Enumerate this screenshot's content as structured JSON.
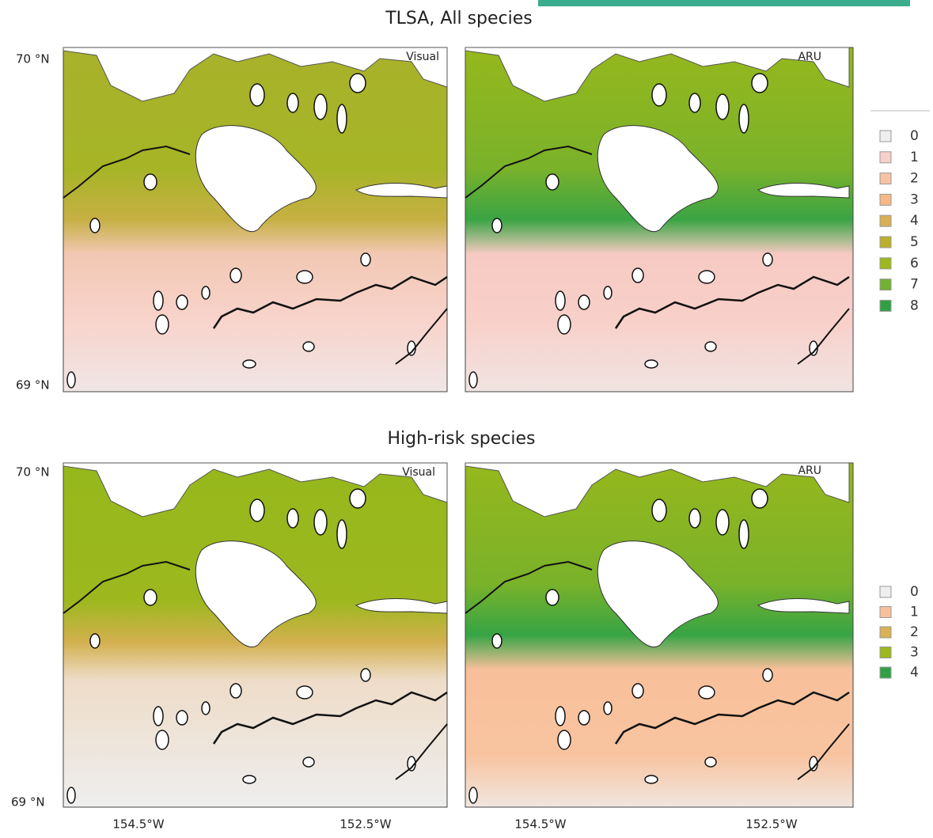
{
  "figure": {
    "titles": [
      "TLSA, All species",
      "High-risk species"
    ],
    "panel_labels": [
      "Visual",
      "ARU"
    ],
    "lat_labels": [
      "70 °N",
      "69 °N"
    ],
    "lon_labels": [
      "154.5°W",
      "152.5°W"
    ],
    "legend_all": [
      {
        "label": "0",
        "color": "#eeeeee"
      },
      {
        "label": "1",
        "color": "#f8d0ca"
      },
      {
        "label": "2",
        "color": "#f8c2a4"
      },
      {
        "label": "3",
        "color": "#f6b884"
      },
      {
        "label": "4",
        "color": "#dab054"
      },
      {
        "label": "5",
        "color": "#bcb02a"
      },
      {
        "label": "6",
        "color": "#9cb81a"
      },
      {
        "label": "7",
        "color": "#72b032"
      },
      {
        "label": "8",
        "color": "#30a044"
      }
    ],
    "legend_high": [
      {
        "label": "0",
        "color": "#eeeeee"
      },
      {
        "label": "1",
        "color": "#f8c09a"
      },
      {
        "label": "2",
        "color": "#dab054"
      },
      {
        "label": "3",
        "color": "#9cb81a"
      },
      {
        "label": "4",
        "color": "#30a044"
      }
    ]
  }
}
